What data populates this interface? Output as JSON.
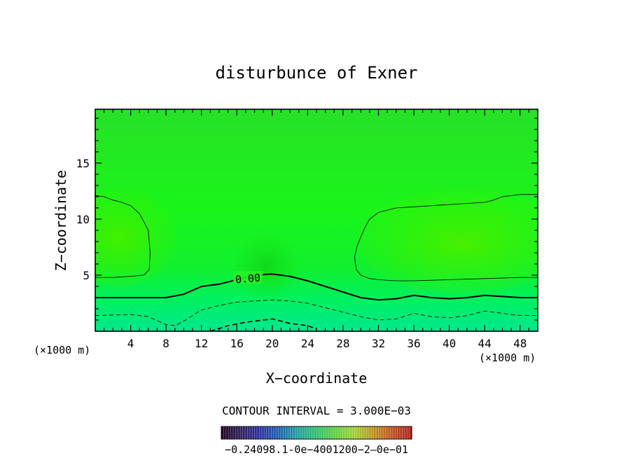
{
  "chart_data": {
    "type": "contour",
    "title": "disturbunce of Exner",
    "xlabel": "X−coordinate",
    "ylabel": "Z−coordinate",
    "x_unit": "(×1000 m)",
    "x_unit_right": "(×1000 m)",
    "xlim": [
      0,
      50
    ],
    "ylim": [
      0,
      19.8
    ],
    "xticks": [
      "4",
      "8",
      "12",
      "16",
      "20",
      "24",
      "28",
      "32",
      "36",
      "40",
      "44",
      "48"
    ],
    "yticks": [
      "5",
      "10",
      "15"
    ],
    "contour_interval_text": "CONTOUR INTERVAL = 3.000E−03",
    "contour_label": "0.00",
    "colorbar_labels": "−0.24098.1‐0e−4001200−2—0e−01",
    "colors": {
      "fill_top": "#22dd22",
      "fill_main": "#19f019",
      "fill_bright": "#33f000",
      "fill_low": "#00f060",
      "fill_bottom": "#00e88a"
    },
    "contours": [
      {
        "level": "zero",
        "style": "solid-bold",
        "x": [
          0,
          4,
          8,
          10,
          12,
          14,
          16,
          18,
          20,
          22,
          24,
          26,
          28,
          30,
          32,
          34,
          36,
          38,
          40,
          42,
          44,
          46,
          48,
          50
        ],
        "y": [
          3.0,
          3.0,
          3.0,
          3.3,
          4.0,
          4.2,
          4.6,
          5.0,
          5.1,
          4.9,
          4.5,
          4.0,
          3.5,
          3.0,
          2.8,
          2.9,
          3.2,
          3.0,
          2.9,
          3.0,
          3.2,
          3.1,
          3.0,
          3.0
        ]
      },
      {
        "level": "negative-1",
        "style": "dashed",
        "x": [
          0,
          4,
          6,
          8,
          9,
          10,
          12,
          14,
          16,
          18,
          20,
          22,
          24,
          26,
          28,
          30,
          32,
          34,
          36,
          38,
          40,
          42,
          44,
          46,
          48,
          50
        ],
        "y": [
          1.4,
          1.5,
          1.3,
          0.6,
          0.5,
          0.9,
          1.9,
          2.3,
          2.6,
          2.7,
          2.8,
          2.7,
          2.5,
          2.1,
          1.7,
          1.3,
          1.0,
          1.1,
          1.6,
          1.3,
          1.2,
          1.4,
          1.8,
          1.6,
          1.4,
          1.4
        ]
      },
      {
        "level": "negative-2",
        "style": "dashed-bold",
        "x": [
          13,
          15,
          17,
          19,
          20,
          22,
          24,
          25
        ],
        "y": [
          0.0,
          0.5,
          0.8,
          1.0,
          1.1,
          0.7,
          0.5,
          0.2
        ]
      },
      {
        "level": "positive-left",
        "style": "thin",
        "x": [
          0,
          1,
          2,
          3,
          4,
          5,
          6,
          6.2,
          6.1,
          5.5,
          4,
          2,
          0
        ],
        "y": [
          12.1,
          12.0,
          11.7,
          11.5,
          11.2,
          10.5,
          9.0,
          7.0,
          5.5,
          5.0,
          4.9,
          4.8,
          4.8
        ],
        "closed": false
      },
      {
        "level": "positive-right",
        "style": "thin",
        "x": [
          50,
          48,
          46,
          45,
          44,
          42,
          40,
          38,
          36,
          34,
          33,
          32,
          31,
          30.5,
          30,
          29.6,
          29.3,
          29.5,
          30,
          31,
          32,
          34,
          36,
          40,
          44,
          48,
          50
        ],
        "y": [
          12.2,
          12.2,
          12.0,
          11.7,
          11.5,
          11.4,
          11.3,
          11.2,
          11.1,
          11.0,
          10.8,
          10.6,
          10.0,
          9.3,
          8.4,
          7.6,
          6.6,
          5.5,
          5.0,
          4.7,
          4.6,
          4.5,
          4.5,
          4.6,
          4.7,
          4.8,
          4.8
        ]
      }
    ],
    "colorbar": {
      "stops": [
        "#200020",
        "#30205a",
        "#3030a0",
        "#2060b0",
        "#20a0a0",
        "#30c070",
        "#60d040",
        "#a0d030",
        "#c09020",
        "#c05020",
        "#b02020"
      ]
    }
  }
}
